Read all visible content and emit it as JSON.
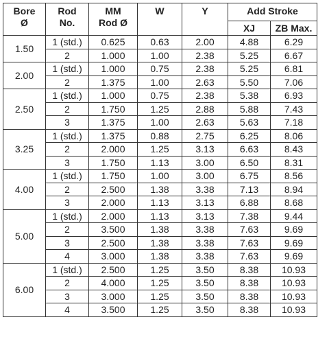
{
  "header": {
    "bore": [
      "Bore",
      "Ø"
    ],
    "rod_no": [
      "Rod",
      "No."
    ],
    "mm_rod": [
      "MM",
      "Rod Ø"
    ],
    "w": "W",
    "y": "Y",
    "add_stroke": "Add Stroke",
    "xj": "XJ",
    "zb_max": "ZB Max."
  },
  "groups": [
    {
      "bore": "1.50",
      "rows": [
        [
          "1 (std.)",
          "0.625",
          "0.63",
          "2.00",
          "4.88",
          "6.29"
        ],
        [
          "2",
          "1.000",
          "1.00",
          "2.38",
          "5.25",
          "6.67"
        ]
      ]
    },
    {
      "bore": "2.00",
      "rows": [
        [
          "1 (std.)",
          "1.000",
          "0.75",
          "2.38",
          "5.25",
          "6.81"
        ],
        [
          "2",
          "1.375",
          "1.00",
          "2.63",
          "5.50",
          "7.06"
        ]
      ]
    },
    {
      "bore": "2.50",
      "rows": [
        [
          "1 (std.)",
          "1.000",
          "0.75",
          "2.38",
          "5.38",
          "6.93"
        ],
        [
          "2",
          "1.750",
          "1.25",
          "2.88",
          "5.88",
          "7.43"
        ],
        [
          "3",
          "1.375",
          "1.00",
          "2.63",
          "5.63",
          "7.18"
        ]
      ]
    },
    {
      "bore": "3.25",
      "rows": [
        [
          "1 (std.)",
          "1.375",
          "0.88",
          "2.75",
          "6.25",
          "8.06"
        ],
        [
          "2",
          "2.000",
          "1.25",
          "3.13",
          "6.63",
          "8.43"
        ],
        [
          "3",
          "1.750",
          "1.13",
          "3.00",
          "6.50",
          "8.31"
        ]
      ]
    },
    {
      "bore": "4.00",
      "rows": [
        [
          "1 (std.)",
          "1.750",
          "1.00",
          "3.00",
          "6.75",
          "8.56"
        ],
        [
          "2",
          "2.500",
          "1.38",
          "3.38",
          "7.13",
          "8.94"
        ],
        [
          "3",
          "2.000",
          "1.13",
          "3.13",
          "6.88",
          "8.68"
        ]
      ]
    },
    {
      "bore": "5.00",
      "rows": [
        [
          "1 (std.)",
          "2.000",
          "1.13",
          "3.13",
          "7.38",
          "9.44"
        ],
        [
          "2",
          "3.500",
          "1.38",
          "3.38",
          "7.63",
          "9.69"
        ],
        [
          "3",
          "2.500",
          "1.38",
          "3.38",
          "7.63",
          "9.69"
        ],
        [
          "4",
          "3.000",
          "1.38",
          "3.38",
          "7.63",
          "9.69"
        ]
      ]
    },
    {
      "bore": "6.00",
      "rows": [
        [
          "1 (std.)",
          "2.500",
          "1.25",
          "3.50",
          "8.38",
          "10.93"
        ],
        [
          "2",
          "4.000",
          "1.25",
          "3.50",
          "8.38",
          "10.93"
        ],
        [
          "3",
          "3.000",
          "1.25",
          "3.50",
          "8.38",
          "10.93"
        ],
        [
          "4",
          "3.500",
          "1.25",
          "3.50",
          "8.38",
          "10.93"
        ]
      ]
    }
  ]
}
